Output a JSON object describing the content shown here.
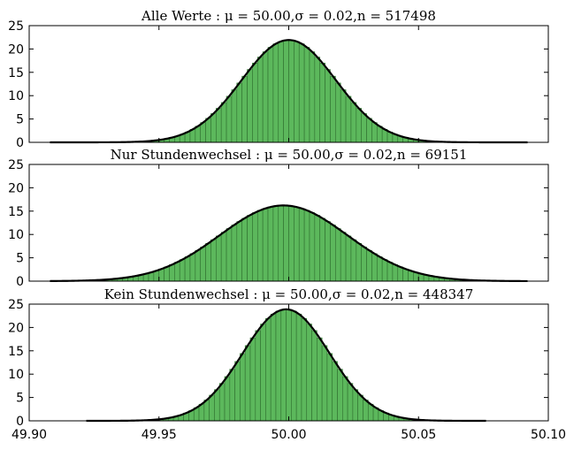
{
  "chart_data": [
    {
      "type": "bar",
      "title": "Alle Werte : μ = 50.00,σ = 0.02,n = 517498",
      "mu": 50.0,
      "sigma": 0.0182,
      "xlim": [
        49.9,
        50.1
      ],
      "ylim": [
        0,
        25
      ],
      "yticks": [
        "0",
        "5",
        "10",
        "15",
        "20",
        "25"
      ],
      "bins": {
        "start": 49.908,
        "end": 50.092,
        "count": 92
      },
      "bar_color": "#5cb85c",
      "curve_color": "#000000"
    },
    {
      "type": "bar",
      "title": "Nur Stundenwechsel : μ = 50.00,σ = 0.02,n = 69151",
      "mu": 49.998,
      "sigma": 0.0246,
      "xlim": [
        49.9,
        50.1
      ],
      "ylim": [
        0,
        25
      ],
      "yticks": [
        "0",
        "5",
        "10",
        "15",
        "20",
        "25"
      ],
      "bins": {
        "start": 49.908,
        "end": 50.092,
        "count": 92
      },
      "bar_color": "#5cb85c",
      "curve_color": "#000000"
    },
    {
      "type": "bar",
      "title": "Kein Stundenwechsel : μ = 50.00,σ = 0.02,n = 448347",
      "mu": 49.999,
      "sigma": 0.0167,
      "xlim": [
        49.9,
        50.1
      ],
      "ylim": [
        0,
        25
      ],
      "yticks": [
        "0",
        "5",
        "10",
        "15",
        "20",
        "25"
      ],
      "xticks": [
        "49.90",
        "49.95",
        "50.00",
        "50.05",
        "50.10"
      ],
      "bins": {
        "start": 49.922,
        "end": 50.076,
        "count": 78
      },
      "bar_color": "#5cb85c",
      "curve_color": "#000000"
    }
  ]
}
